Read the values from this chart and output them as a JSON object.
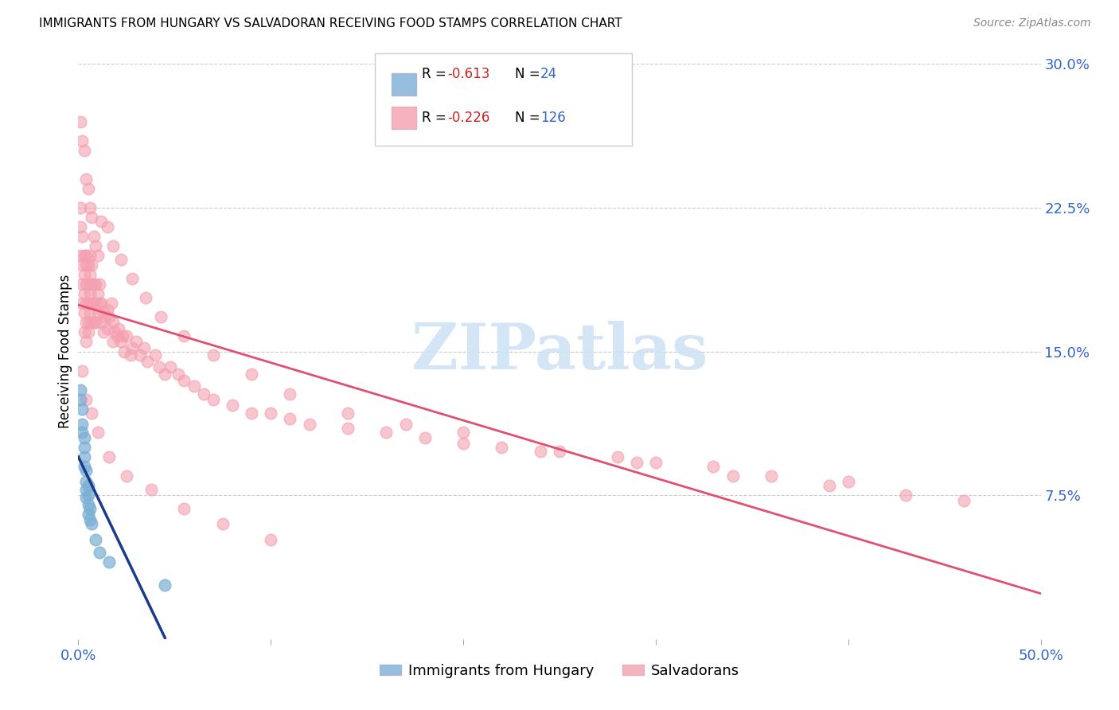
{
  "title": "IMMIGRANTS FROM HUNGARY VS SALVADORAN RECEIVING FOOD STAMPS CORRELATION CHART",
  "source": "Source: ZipAtlas.com",
  "ylabel": "Receiving Food Stamps",
  "xmin": 0.0,
  "xmax": 0.5,
  "ymin": 0.0,
  "ymax": 0.3,
  "ytick_positions": [
    0.0,
    0.075,
    0.15,
    0.225,
    0.3
  ],
  "ytick_labels": [
    "",
    "7.5%",
    "15.0%",
    "22.5%",
    "30.0%"
  ],
  "xtick_positions": [
    0.0,
    0.1,
    0.2,
    0.3,
    0.4,
    0.5
  ],
  "xtick_labels": [
    "0.0%",
    "",
    "",
    "",
    "",
    "50.0%"
  ],
  "blue_color": "#7BAFD4",
  "pink_color": "#F4A0B0",
  "trendline_blue": "#1a3a8a",
  "trendline_pink": "#E05070",
  "watermark_text": "ZIPatlas",
  "watermark_color": "#d0e4f5",
  "hungary_x": [
    0.001,
    0.001,
    0.002,
    0.002,
    0.002,
    0.003,
    0.003,
    0.003,
    0.003,
    0.004,
    0.004,
    0.004,
    0.004,
    0.005,
    0.005,
    0.005,
    0.005,
    0.006,
    0.006,
    0.007,
    0.009,
    0.011,
    0.016,
    0.045
  ],
  "hungary_y": [
    0.13,
    0.125,
    0.12,
    0.112,
    0.108,
    0.105,
    0.1,
    0.095,
    0.09,
    0.088,
    0.082,
    0.078,
    0.074,
    0.075,
    0.07,
    0.065,
    0.08,
    0.068,
    0.062,
    0.06,
    0.052,
    0.045,
    0.04,
    0.028
  ],
  "salvadoran_x": [
    0.001,
    0.001,
    0.001,
    0.002,
    0.002,
    0.002,
    0.002,
    0.003,
    0.003,
    0.003,
    0.003,
    0.003,
    0.004,
    0.004,
    0.004,
    0.004,
    0.004,
    0.004,
    0.005,
    0.005,
    0.005,
    0.005,
    0.005,
    0.006,
    0.006,
    0.006,
    0.006,
    0.007,
    0.007,
    0.007,
    0.007,
    0.008,
    0.008,
    0.008,
    0.009,
    0.009,
    0.009,
    0.01,
    0.01,
    0.011,
    0.011,
    0.012,
    0.012,
    0.013,
    0.013,
    0.014,
    0.015,
    0.015,
    0.016,
    0.017,
    0.018,
    0.018,
    0.019,
    0.02,
    0.021,
    0.022,
    0.023,
    0.024,
    0.025,
    0.027,
    0.028,
    0.03,
    0.032,
    0.034,
    0.036,
    0.04,
    0.042,
    0.045,
    0.048,
    0.052,
    0.055,
    0.06,
    0.065,
    0.07,
    0.08,
    0.09,
    0.1,
    0.11,
    0.12,
    0.14,
    0.16,
    0.18,
    0.2,
    0.22,
    0.25,
    0.28,
    0.3,
    0.33,
    0.36,
    0.4,
    0.001,
    0.002,
    0.003,
    0.004,
    0.005,
    0.006,
    0.007,
    0.008,
    0.009,
    0.01,
    0.012,
    0.015,
    0.018,
    0.022,
    0.028,
    0.035,
    0.043,
    0.055,
    0.07,
    0.09,
    0.11,
    0.14,
    0.17,
    0.2,
    0.24,
    0.29,
    0.34,
    0.39,
    0.43,
    0.46,
    0.002,
    0.004,
    0.007,
    0.01,
    0.016,
    0.025,
    0.038,
    0.055,
    0.075,
    0.1
  ],
  "salvadoran_y": [
    0.2,
    0.215,
    0.225,
    0.195,
    0.185,
    0.175,
    0.21,
    0.2,
    0.19,
    0.18,
    0.17,
    0.16,
    0.2,
    0.195,
    0.185,
    0.175,
    0.165,
    0.155,
    0.195,
    0.185,
    0.175,
    0.165,
    0.16,
    0.2,
    0.19,
    0.18,
    0.17,
    0.195,
    0.185,
    0.175,
    0.165,
    0.185,
    0.175,
    0.165,
    0.185,
    0.175,
    0.165,
    0.18,
    0.17,
    0.185,
    0.175,
    0.175,
    0.165,
    0.17,
    0.16,
    0.168,
    0.172,
    0.162,
    0.168,
    0.175,
    0.165,
    0.155,
    0.16,
    0.158,
    0.162,
    0.155,
    0.158,
    0.15,
    0.158,
    0.148,
    0.152,
    0.155,
    0.148,
    0.152,
    0.145,
    0.148,
    0.142,
    0.138,
    0.142,
    0.138,
    0.135,
    0.132,
    0.128,
    0.125,
    0.122,
    0.118,
    0.118,
    0.115,
    0.112,
    0.11,
    0.108,
    0.105,
    0.102,
    0.1,
    0.098,
    0.095,
    0.092,
    0.09,
    0.085,
    0.082,
    0.27,
    0.26,
    0.255,
    0.24,
    0.235,
    0.225,
    0.22,
    0.21,
    0.205,
    0.2,
    0.218,
    0.215,
    0.205,
    0.198,
    0.188,
    0.178,
    0.168,
    0.158,
    0.148,
    0.138,
    0.128,
    0.118,
    0.112,
    0.108,
    0.098,
    0.092,
    0.085,
    0.08,
    0.075,
    0.072,
    0.14,
    0.125,
    0.118,
    0.108,
    0.095,
    0.085,
    0.078,
    0.068,
    0.06,
    0.052
  ]
}
